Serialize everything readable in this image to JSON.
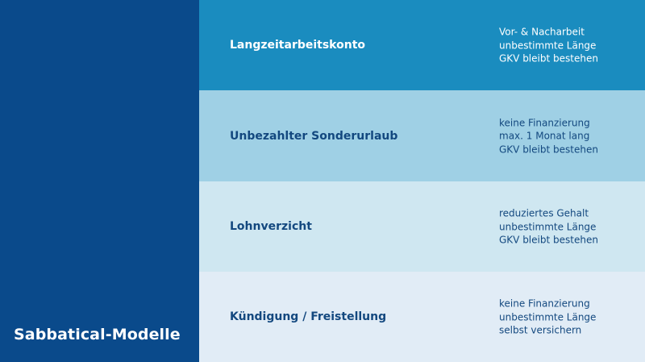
{
  "sidebar": {
    "title": "Sabbatical-Modelle",
    "color": "#0a4a8b"
  },
  "models": [
    {
      "name": "Langzeitarbeitskonto",
      "details": [
        "Vor- & Nacharbeit",
        "unbestimmte Länge",
        "GKV bleibt bestehen"
      ],
      "background": "#1a8cbf",
      "text_color": "#ffffff"
    },
    {
      "name": "Unbezahlter Sonderurlaub",
      "details": [
        "keine Finanzierung",
        "max. 1 Monat lang",
        "GKV bleibt bestehen"
      ],
      "background": "#9fd0e5",
      "text_color": "#13487f"
    },
    {
      "name": "Lohnverzicht",
      "details": [
        "reduziertes Gehalt",
        "unbestimmte Länge",
        "GKV bleibt bestehen"
      ],
      "background": "#cfe7f1",
      "text_color": "#13487f"
    },
    {
      "name": "Kündigung / Freistellung",
      "details": [
        "keine Finanzierung",
        "unbestimmte Länge",
        "selbst versichern"
      ],
      "background": "#e1ecf6",
      "text_color": "#13487f"
    }
  ]
}
